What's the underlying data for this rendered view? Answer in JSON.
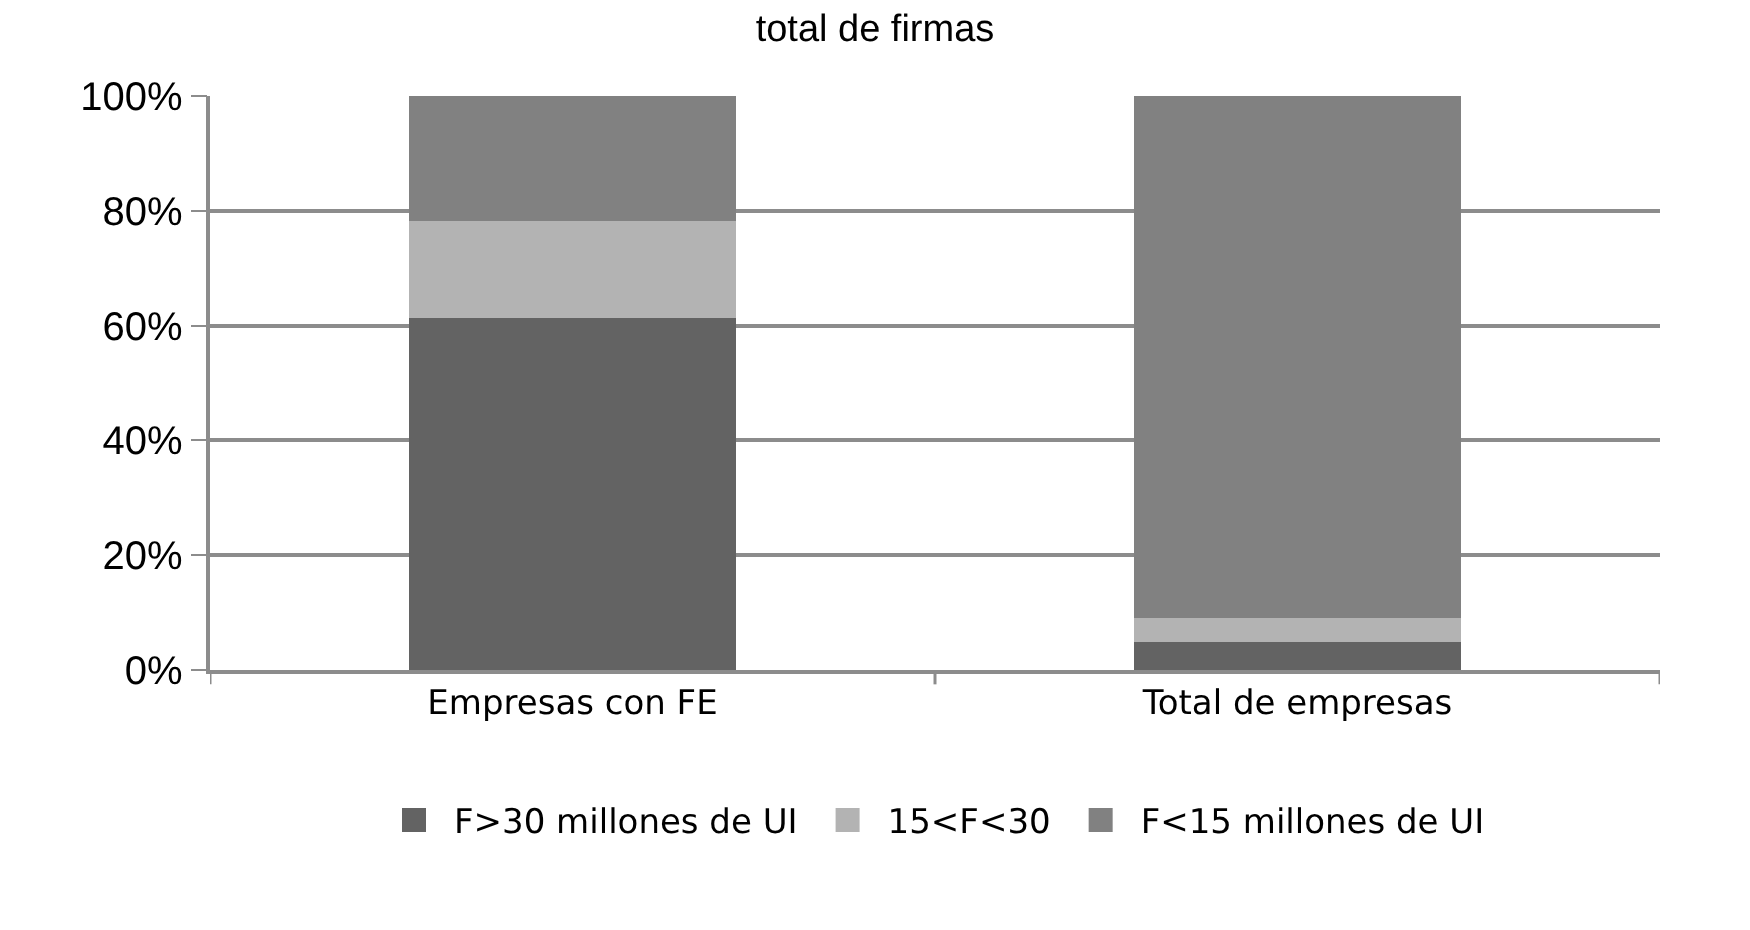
{
  "chart_data": {
    "type": "bar",
    "title": "total de firmas",
    "stacked": true,
    "categories": [
      "Empresas con FE",
      "Total de empresas"
    ],
    "series": [
      {
        "name": "F>30 millones de UI",
        "color": "#636363",
        "values": [
          61.4,
          4.9
        ]
      },
      {
        "name": "15<F<30",
        "color": "#b3b3b3",
        "values": [
          16.8,
          4.2
        ]
      },
      {
        "name": "F<15 millones de UI",
        "color": "#818181",
        "values": [
          21.8,
          90.9
        ]
      }
    ],
    "ylim": [
      0,
      100
    ],
    "yticks": [
      {
        "value": 0,
        "label": "0%"
      },
      {
        "value": 20,
        "label": "20%"
      },
      {
        "value": 40,
        "label": "40%"
      },
      {
        "value": 60,
        "label": "60%"
      },
      {
        "value": 80,
        "label": "80%"
      },
      {
        "value": 100,
        "label": "100%"
      }
    ],
    "grid": "y",
    "legend": "bottom"
  }
}
